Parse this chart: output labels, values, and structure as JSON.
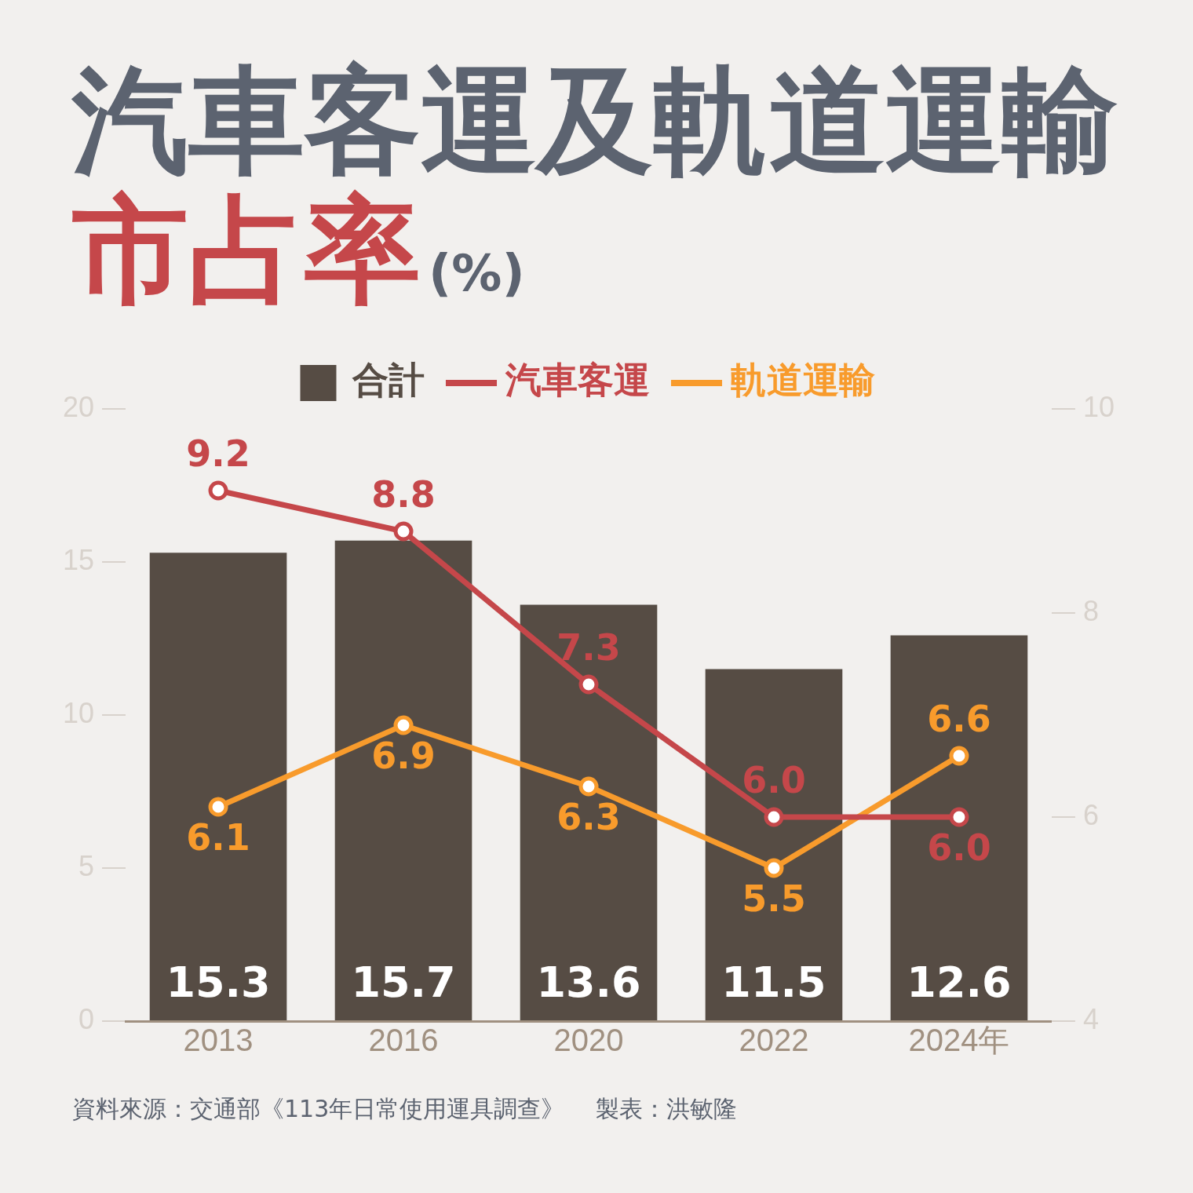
{
  "chart_data": {
    "type": "bar",
    "title": "汽車客運及軌道運輸",
    "subtitle": "市占率",
    "ylabel": "(%)",
    "categories": [
      "2013",
      "2016",
      "2020",
      "2022",
      "2024年"
    ],
    "series": [
      {
        "name": "合計",
        "color": "#564c44",
        "values": [
          15.3,
          15.7,
          13.6,
          11.5,
          12.6
        ],
        "value_labels": [
          "15.3",
          "15.7",
          "13.6",
          "11.5",
          "12.6"
        ]
      },
      {
        "name": "汽車客運",
        "type": "line",
        "axis": "y2",
        "color": "#c5474a",
        "values": [
          9.2,
          8.8,
          7.3,
          6.0,
          6.0
        ],
        "value_labels": [
          "9.2",
          "8.8",
          "7.3",
          "6.0",
          "6.0"
        ]
      },
      {
        "name": "軌道運輸",
        "type": "line",
        "axis": "y2",
        "color": "#f89b2c",
        "values": [
          6.1,
          6.9,
          6.3,
          5.5,
          6.6
        ],
        "value_labels": [
          "6.1",
          "6.9",
          "6.3",
          "5.5",
          "6.6"
        ]
      }
    ],
    "ylim": [
      0,
      20
    ],
    "yticks": [
      0,
      5,
      10,
      15,
      20
    ],
    "y2lim": [
      4,
      10
    ],
    "y2ticks": [
      4,
      6,
      8,
      10
    ],
    "legend": "top",
    "grid": false,
    "marker": "circle",
    "line_style": "solid",
    "annotations": [
      "資料來源：交通部《113年日常使用運具調查》",
      "製表：洪敏隆"
    ]
  }
}
